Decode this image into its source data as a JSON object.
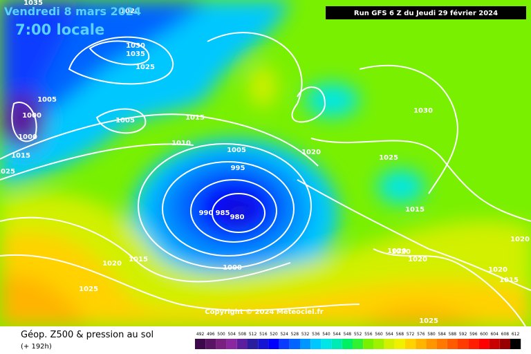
{
  "header": {
    "date": "Vendredi 8 mars 2024",
    "time": "7:00 locale",
    "run": "Run GFS 6 Z du Jeudi 29 février 2024"
  },
  "footer": {
    "title": "Géop. Z500 & pression au sol",
    "lead": "(+ 192h)",
    "copyright": "Copyright © 2024 Meteociel.fr"
  },
  "scale": {
    "labels": [
      492,
      496,
      500,
      504,
      508,
      512,
      516,
      520,
      524,
      528,
      532,
      536,
      540,
      544,
      548,
      552,
      556,
      560,
      564,
      568,
      572,
      576,
      580,
      584,
      588,
      592,
      596,
      600,
      604,
      608,
      612
    ],
    "colors": [
      "#3c0a4b",
      "#5a1464",
      "#7a2080",
      "#8a28a0",
      "#5a1e9e",
      "#2a1e9e",
      "#1414d2",
      "#0000ff",
      "#0a3cff",
      "#0064ff",
      "#0096ff",
      "#00c8ff",
      "#00e6e6",
      "#00ebb4",
      "#00f064",
      "#32f032",
      "#78f000",
      "#a0f000",
      "#d2f000",
      "#f0f000",
      "#ffd200",
      "#ffb400",
      "#ff9600",
      "#ff7800",
      "#ff5a00",
      "#ff3c00",
      "#ff1e00",
      "#ff0000",
      "#c80000",
      "#960000",
      "#000000"
    ]
  },
  "isobars": [
    "1035",
    "1020",
    "1030",
    "1035",
    "1025",
    "1005",
    "1000",
    "1000",
    "1005",
    "1015",
    "1010",
    "1005",
    "995",
    "1020",
    "1025",
    "1030",
    "1015",
    "990",
    "985",
    "980",
    "1000",
    "1015",
    "1020",
    "1020",
    "1020",
    "1020",
    "1025",
    "1020",
    "1015",
    "1025",
    "1020",
    "1025",
    "1015"
  ]
}
